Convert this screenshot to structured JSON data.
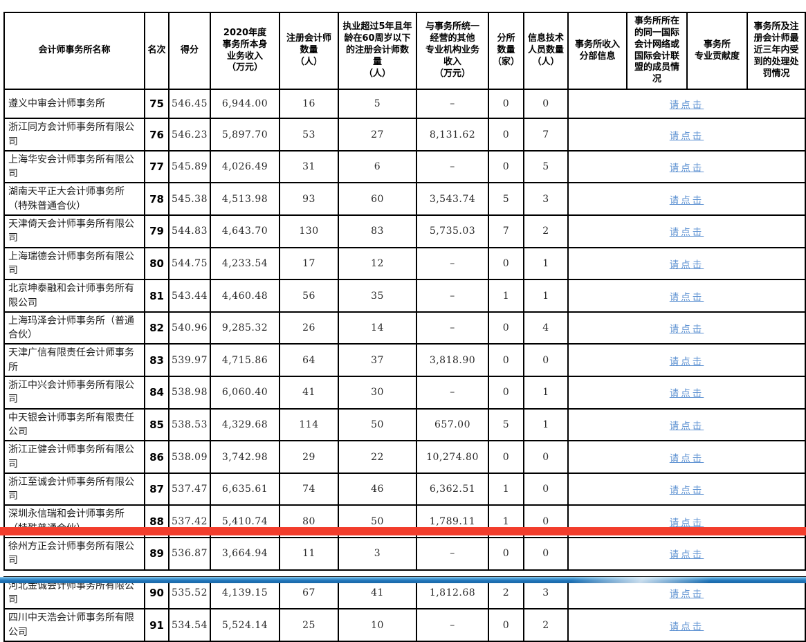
{
  "table": {
    "headers": [
      "会计师事务所名称",
      "名次",
      "得分",
      "2020年度\n事务所本身\n业务收入\n（万元）",
      "注册会计师\n数量\n（人）",
      "执业超过5年且年\n龄在60周岁以下\n的注册会计师数\n量\n（人）",
      "与事务所统一\n经营的其他\n专业机构业务\n收入\n（万元）",
      "分所\n数量\n（家）",
      "信息技术\n人员数量\n（人）",
      "事务所收入\n分部信息",
      "事务所所在\n的同一国际\n会计网络或\n国际会计联\n盟的成员情\n况",
      "事务所\n专业贡献度",
      "事务所及注\n册会计师最\n近三年内受\n到的处理处\n罚情况"
    ],
    "link_label": "请点击",
    "rows": [
      {
        "name": "遵义中审会计师事务所",
        "rank": "75",
        "score": "546.45",
        "revenue": "6,944.00",
        "cpa": "16",
        "cpa5": "5",
        "other": "–",
        "branches": "0",
        "it": "0"
      },
      {
        "name": "浙江同方会计师事务所有限公司",
        "rank": "76",
        "score": "546.23",
        "revenue": "5,897.70",
        "cpa": "53",
        "cpa5": "27",
        "other": "8,131.62",
        "branches": "0",
        "it": "7"
      },
      {
        "name": "上海华安会计师事务所有限公司",
        "rank": "77",
        "score": "545.89",
        "revenue": "4,026.49",
        "cpa": "31",
        "cpa5": "6",
        "other": "–",
        "branches": "0",
        "it": "5"
      },
      {
        "name": "湖南天平正大会计师事务所（特殊普通合伙）",
        "rank": "78",
        "score": "545.38",
        "revenue": "4,513.98",
        "cpa": "93",
        "cpa5": "60",
        "other": "3,543.74",
        "branches": "5",
        "it": "3"
      },
      {
        "name": "天津倚天会计师事务所有限公司",
        "rank": "79",
        "score": "544.83",
        "revenue": "4,643.70",
        "cpa": "130",
        "cpa5": "83",
        "other": "5,735.03",
        "branches": "7",
        "it": "2"
      },
      {
        "name": "上海瑞德会计师事务所有限公司",
        "rank": "80",
        "score": "544.75",
        "revenue": "4,233.54",
        "cpa": "17",
        "cpa5": "12",
        "other": "–",
        "branches": "0",
        "it": "1"
      },
      {
        "name": "北京坤泰融和会计师事务所有限公司",
        "rank": "81",
        "score": "543.44",
        "revenue": "4,460.48",
        "cpa": "56",
        "cpa5": "35",
        "other": "–",
        "branches": "1",
        "it": "1"
      },
      {
        "name": "上海玛泽会计师事务所（普通合伙）",
        "rank": "82",
        "score": "540.96",
        "revenue": "9,285.32",
        "cpa": "26",
        "cpa5": "14",
        "other": "–",
        "branches": "0",
        "it": "4"
      },
      {
        "name": "天津广信有限责任会计师事务所",
        "rank": "83",
        "score": "539.97",
        "revenue": "4,715.86",
        "cpa": "64",
        "cpa5": "37",
        "other": "3,818.90",
        "branches": "0",
        "it": "0"
      },
      {
        "name": "浙江中兴会计师事务所有限公司",
        "rank": "84",
        "score": "538.98",
        "revenue": "6,060.40",
        "cpa": "41",
        "cpa5": "30",
        "other": "–",
        "branches": "0",
        "it": "1"
      },
      {
        "name": "中天银会计师事务所有限责任公司",
        "rank": "85",
        "score": "538.53",
        "revenue": "4,329.68",
        "cpa": "114",
        "cpa5": "50",
        "other": "657.00",
        "branches": "5",
        "it": "1"
      },
      {
        "name": "浙江正健会计师事务所有限公司",
        "rank": "86",
        "score": "538.09",
        "revenue": "3,742.98",
        "cpa": "29",
        "cpa5": "22",
        "other": "10,274.80",
        "branches": "0",
        "it": "0"
      },
      {
        "name": "浙江至诚会计师事务所有限公司",
        "rank": "87",
        "score": "537.47",
        "revenue": "6,635.61",
        "cpa": "74",
        "cpa5": "46",
        "other": "6,362.51",
        "branches": "1",
        "it": "0"
      },
      {
        "name": "深圳永信瑞和会计师事务所（特殊普通合伙）",
        "rank": "88",
        "score": "537.42",
        "revenue": "5,410.74",
        "cpa": "80",
        "cpa5": "50",
        "other": "1,789.11",
        "branches": "1",
        "it": "0"
      },
      {
        "name": "徐州方正会计师事务所有限公司",
        "rank": "89",
        "score": "536.87",
        "revenue": "3,664.94",
        "cpa": "11",
        "cpa5": "3",
        "other": "–",
        "branches": "0",
        "it": "0"
      },
      {
        "name": "河北金诚会计师事务所有限公司",
        "rank": "90",
        "score": "535.52",
        "revenue": "4,139.15",
        "cpa": "67",
        "cpa5": "41",
        "other": "1,812.68",
        "branches": "2",
        "it": "3"
      },
      {
        "name": "四川中天浩会计师事务所有限公司",
        "rank": "91",
        "score": "534.54",
        "revenue": "5,524.14",
        "cpa": "25",
        "cpa5": "10",
        "other": "–",
        "branches": "0",
        "it": "2"
      }
    ]
  },
  "red_divider": {
    "after_rank": "89",
    "color": "#f23d2c"
  },
  "bottom_bar": {
    "color_top": "#8fd0f0",
    "color_main": "#1a67a8"
  }
}
